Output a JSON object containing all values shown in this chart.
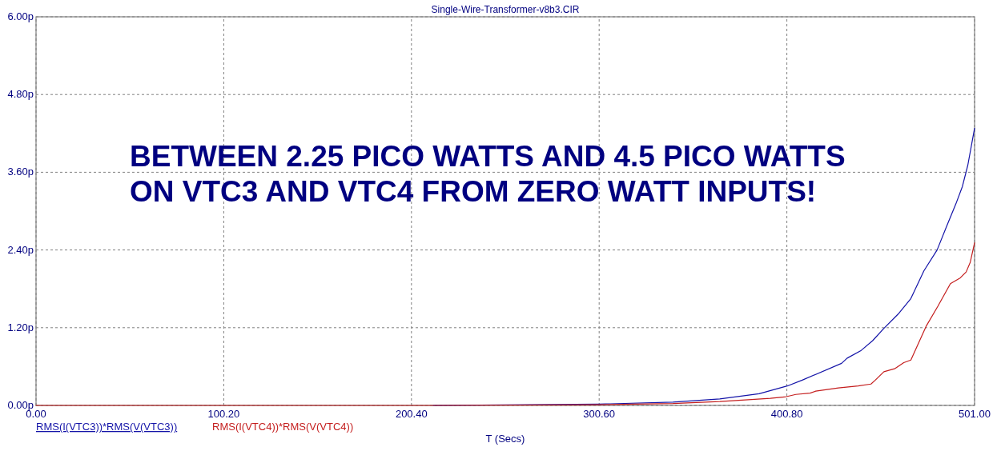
{
  "chart_data": {
    "type": "line",
    "title": "Single-Wire-Transformer-v8b3.CIR",
    "xlabel": "T (Secs)",
    "annotations": [
      "BETWEEN 2.25 PICO WATTS AND 4.5 PICO WATTS",
      "ON VTC3 AND VTC4 FROM ZERO WATT INPUTS!"
    ],
    "xlim": [
      0,
      501
    ],
    "ylim": [
      0,
      6
    ],
    "xticks": [
      {
        "value": 0,
        "label": "0.00"
      },
      {
        "value": 100.2,
        "label": "100.20"
      },
      {
        "value": 200.4,
        "label": "200.40"
      },
      {
        "value": 300.6,
        "label": "300.60"
      },
      {
        "value": 400.8,
        "label": "400.80"
      },
      {
        "value": 501,
        "label": "501.00"
      }
    ],
    "yticks": [
      {
        "value": 0,
        "label": "0.00p"
      },
      {
        "value": 1.2,
        "label": "1.20p"
      },
      {
        "value": 2.4,
        "label": "2.40p"
      },
      {
        "value": 3.6,
        "label": "3.60p"
      },
      {
        "value": 4.8,
        "label": "4.80p"
      },
      {
        "value": 6,
        "label": "6.00p"
      }
    ],
    "grid": true,
    "legend": "bottom left",
    "line_style": "solid",
    "series": [
      {
        "name": "RMS(I(VTC3))*RMS(V(VTC3))",
        "color": "#1414a8",
        "x": [
          212,
          300.6,
          340,
          365,
          386,
          401,
          409,
          430,
          433,
          440.5,
          446.6,
          452.6,
          460.2,
          467,
          474,
          481,
          486,
          491,
          494.5,
          497.4,
          501
        ],
        "values": [
          0,
          0.02,
          0.05,
          0.1,
          0.18,
          0.3,
          0.39,
          0.65,
          0.73,
          0.85,
          1.0,
          1.19,
          1.41,
          1.65,
          2.08,
          2.4,
          2.76,
          3.11,
          3.38,
          3.71,
          4.28
        ]
      },
      {
        "name": "RMS(I(VTC4))*RMS(V(VTC4))",
        "color": "#c41e1e",
        "x": [
          0,
          212,
          300.6,
          340,
          365,
          392,
          399.6,
          405.6,
          413.2,
          416.2,
          428.3,
          438.9,
          445.7,
          448,
          452.6,
          458.6,
          463.2,
          467,
          475.3,
          481.4,
          488.1,
          493.4,
          496.5,
          498.7,
          501
        ],
        "values": [
          0,
          0,
          0.01,
          0.03,
          0.06,
          0.11,
          0.13,
          0.17,
          0.19,
          0.22,
          0.27,
          0.3,
          0.33,
          0.39,
          0.52,
          0.57,
          0.66,
          0.7,
          1.23,
          1.53,
          1.88,
          1.97,
          2.06,
          2.21,
          2.51
        ]
      }
    ]
  }
}
